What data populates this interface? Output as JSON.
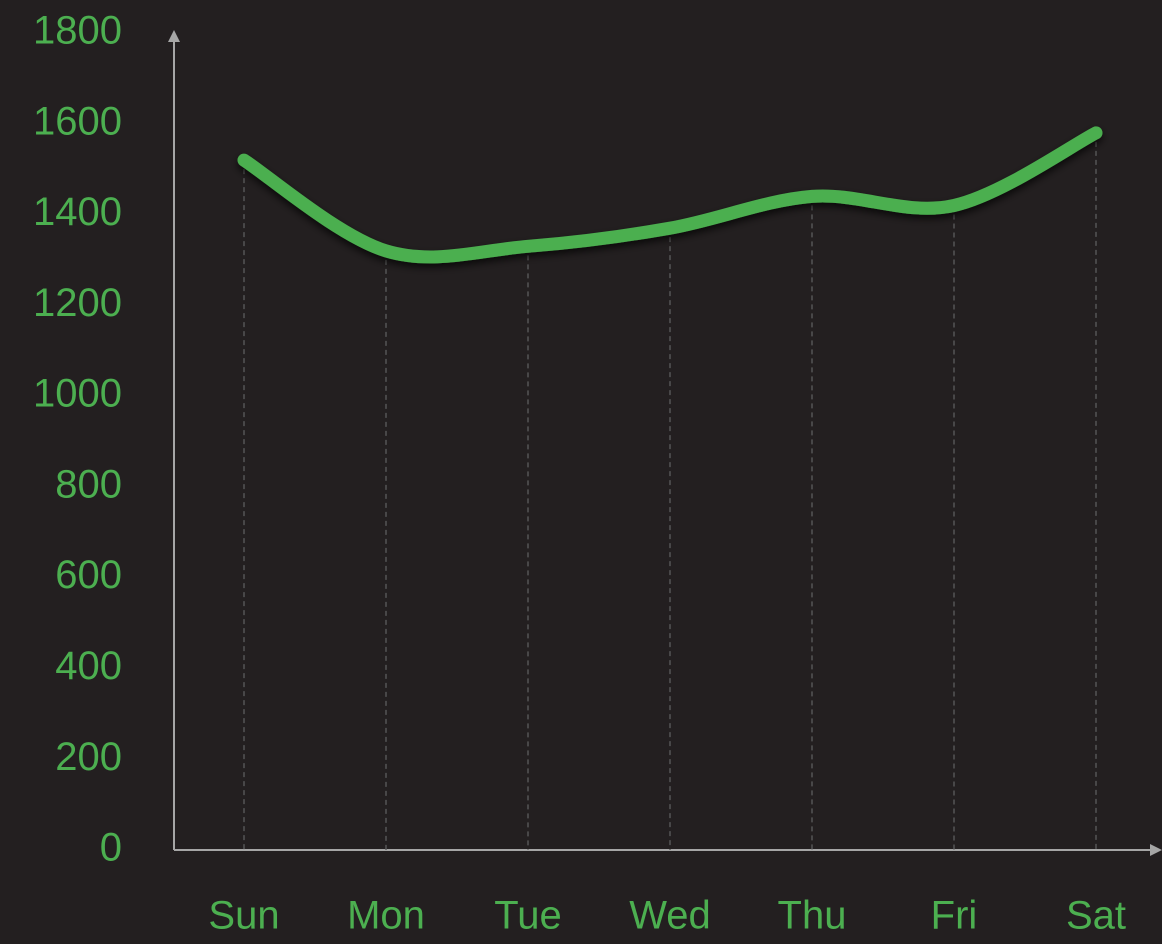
{
  "chart_data": {
    "type": "line",
    "smooth": true,
    "categories": [
      "Sun",
      "Mon",
      "Tue",
      "Wed",
      "Thu",
      "Fri",
      "Sat"
    ],
    "values": [
      1520,
      1320,
      1330,
      1370,
      1440,
      1420,
      1580
    ],
    "color": "#4caf50",
    "ylim": [
      0,
      1800
    ],
    "yticks": [
      0,
      200,
      400,
      600,
      800,
      1000,
      1200,
      1400,
      1600,
      1800
    ],
    "drop_lines": true
  }
}
